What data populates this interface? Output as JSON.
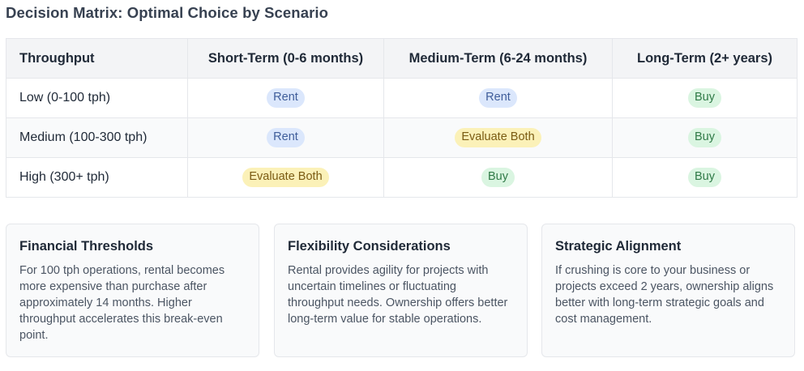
{
  "title": "Decision Matrix: Optimal Choice by Scenario",
  "matrix": {
    "headers": [
      "Throughput",
      "Short-Term (0-6 months)",
      "Medium-Term (6-24 months)",
      "Long-Term (2+ years)"
    ],
    "rows": [
      {
        "label": "Low (0-100 tph)",
        "cells": [
          {
            "text": "Rent",
            "kind": "rent"
          },
          {
            "text": "Rent",
            "kind": "rent"
          },
          {
            "text": "Buy",
            "kind": "buy"
          }
        ]
      },
      {
        "label": "Medium (100-300 tph)",
        "cells": [
          {
            "text": "Rent",
            "kind": "rent"
          },
          {
            "text": "Evaluate Both",
            "kind": "eval"
          },
          {
            "text": "Buy",
            "kind": "buy"
          }
        ]
      },
      {
        "label": "High (300+ tph)",
        "cells": [
          {
            "text": "Evaluate Both",
            "kind": "eval"
          },
          {
            "text": "Buy",
            "kind": "buy"
          },
          {
            "text": "Buy",
            "kind": "buy"
          }
        ]
      }
    ]
  },
  "cards": [
    {
      "title": "Financial Thresholds",
      "body": "For 100 tph operations, rental becomes more expensive than purchase after approximately 14 months. Higher throughput accelerates this break-even point."
    },
    {
      "title": "Flexibility Considerations",
      "body": "Rental provides agility for projects with uncertain timelines or fluctuating throughput needs. Ownership offers better long-term value for stable operations."
    },
    {
      "title": "Strategic Alignment",
      "body": "If crushing is core to your business or projects exceed 2 years, ownership aligns better with long-term strategic goals and cost management."
    }
  ],
  "colors": {
    "rent_bg": "#dbe7fc",
    "buy_bg": "#daf5e1",
    "eval_bg": "#fbf1b8"
  }
}
